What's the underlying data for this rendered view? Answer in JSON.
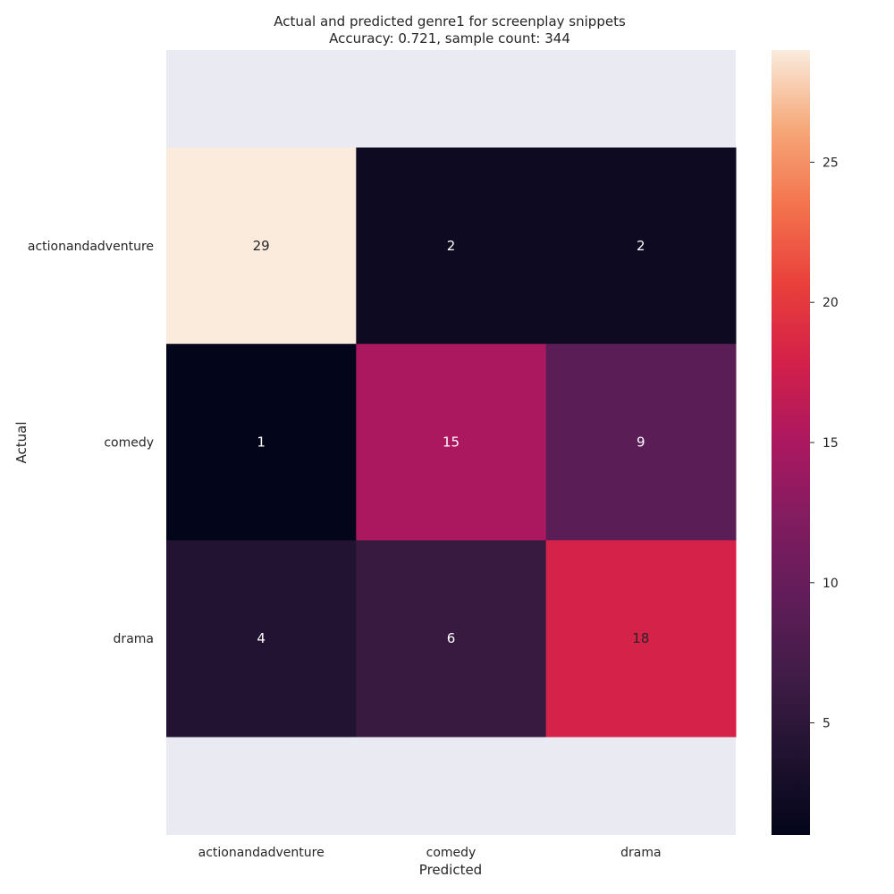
{
  "chart_data": {
    "type": "heatmap",
    "title": "Actual and predicted genre1 for screenplay snippets",
    "subtitle": "Accuracy: 0.721, sample count: 344",
    "xlabel": "Predicted",
    "ylabel": "Actual",
    "x_categories": [
      "actionandadventure",
      "comedy",
      "drama"
    ],
    "y_categories": [
      "actionandadventure",
      "comedy",
      "drama"
    ],
    "values": [
      [
        29,
        2,
        2
      ],
      [
        1,
        15,
        9
      ],
      [
        4,
        6,
        18
      ]
    ],
    "colorbar": {
      "min": 1,
      "max": 29,
      "ticks": [
        5,
        10,
        15,
        20,
        25
      ]
    },
    "colormap": "rocket",
    "colors": {
      "axes_background": "#eaeaf2",
      "text": "#262626",
      "cell_text_light": "#ffffff",
      "cell_text_dark": "#262626"
    }
  }
}
